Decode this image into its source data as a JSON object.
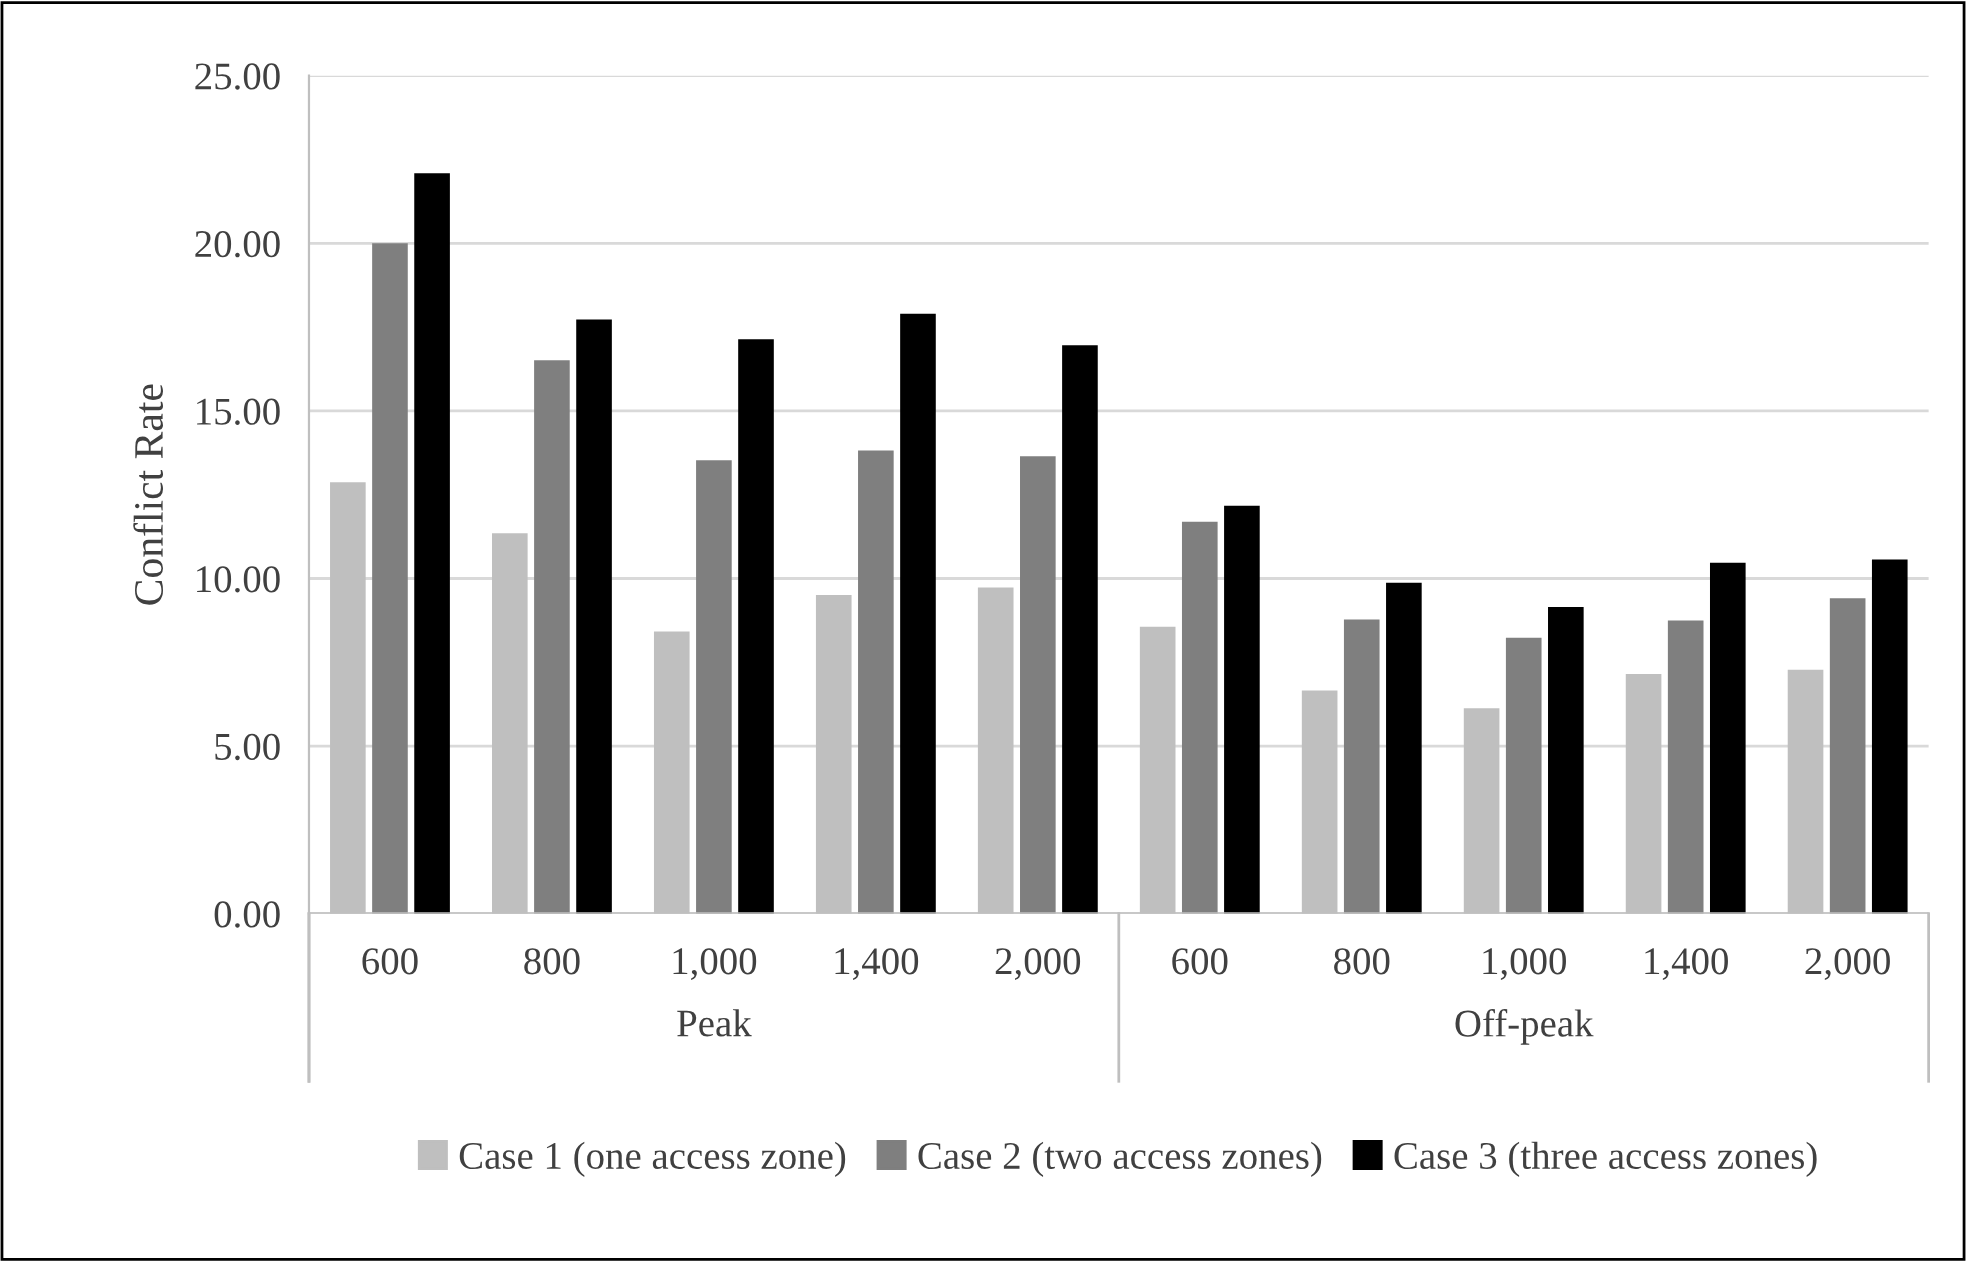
{
  "chart_data": {
    "type": "bar",
    "ylabel": "Conflict Rate",
    "categories": [
      "600",
      "800",
      "1,000",
      "1,400",
      "2,000",
      "600",
      "800",
      "1,000",
      "1,400",
      "2,000"
    ],
    "annotations": [
      "Peak",
      "Off-peak"
    ],
    "series": [
      {
        "name": "Case 1 (one access zone)",
        "color": "#bfbfbf",
        "values": [
          12.87,
          11.35,
          8.42,
          9.51,
          9.73,
          8.56,
          6.66,
          6.13,
          7.15,
          7.28
        ]
      },
      {
        "name": "Case 2 (two access zones)",
        "color": "#7f7f7f",
        "values": [
          20.0,
          16.51,
          13.53,
          13.82,
          13.65,
          11.69,
          8.78,
          8.23,
          8.75,
          9.41
        ]
      },
      {
        "name": "Case 3 (three access zones)",
        "color": "#000000",
        "values": [
          22.09,
          17.73,
          17.14,
          17.9,
          16.96,
          12.17,
          9.87,
          9.15,
          10.47,
          10.57
        ]
      }
    ],
    "ylim": [
      0,
      25
    ],
    "yticks": [
      {
        "value": 0,
        "label": "0.00"
      },
      {
        "value": 5,
        "label": "5.00"
      },
      {
        "value": 10,
        "label": "10.00"
      },
      {
        "value": 15,
        "label": "15.00"
      },
      {
        "value": 20,
        "label": "20.00"
      },
      {
        "value": 25,
        "label": "25.00"
      }
    ],
    "grid": "y",
    "legend": "bottom"
  }
}
